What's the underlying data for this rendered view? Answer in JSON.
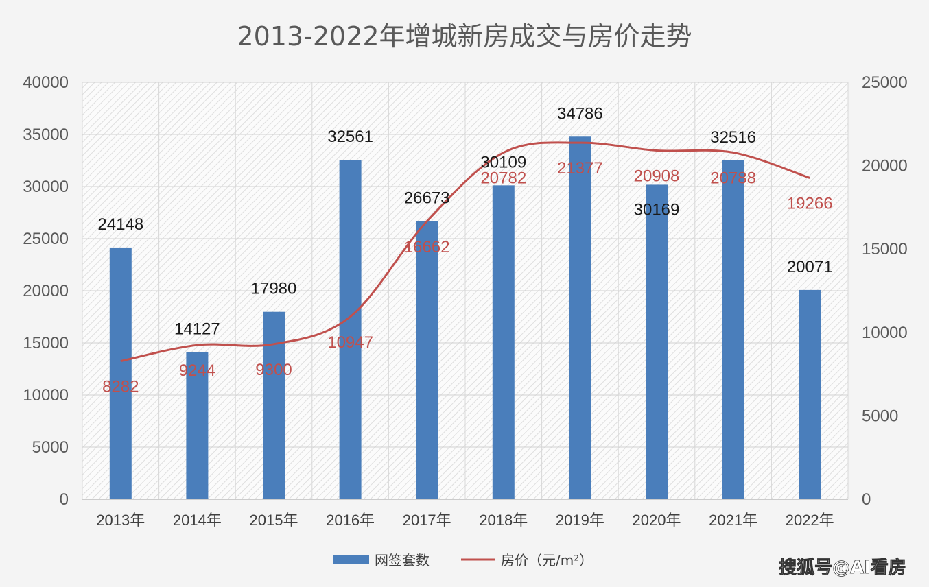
{
  "chart_data": {
    "type": "bar",
    "title": "2013-2022年增城新房成交与房价走势",
    "categories": [
      "2013年",
      "2014年",
      "2015年",
      "2016年",
      "2017年",
      "2018年",
      "2019年",
      "2020年",
      "2021年",
      "2022年"
    ],
    "series": [
      {
        "name": "网签套数",
        "type": "bar",
        "axis": "left",
        "values": [
          24148,
          14127,
          17980,
          32561,
          26673,
          30109,
          34786,
          30169,
          32516,
          20071
        ]
      },
      {
        "name": "房价（元/m²）",
        "type": "line",
        "axis": "right",
        "values": [
          8282,
          9244,
          9300,
          10947,
          16662,
          20782,
          21377,
          20908,
          20788,
          19266
        ]
      }
    ],
    "ylim_left": [
      0,
      40000
    ],
    "ylim_right": [
      0,
      25000
    ],
    "yticks_left": [
      "0",
      "5000",
      "10000",
      "15000",
      "20000",
      "25000",
      "30000",
      "35000",
      "40000"
    ],
    "yticks_right": [
      "0",
      "5000",
      "10000",
      "15000",
      "20000",
      "25000"
    ],
    "grid": true,
    "legend": "bottom",
    "colors": {
      "bar": "#4a7ebb",
      "line": "#c0504d"
    }
  },
  "watermark": {
    "brand": "搜狐号@AI看房"
  }
}
